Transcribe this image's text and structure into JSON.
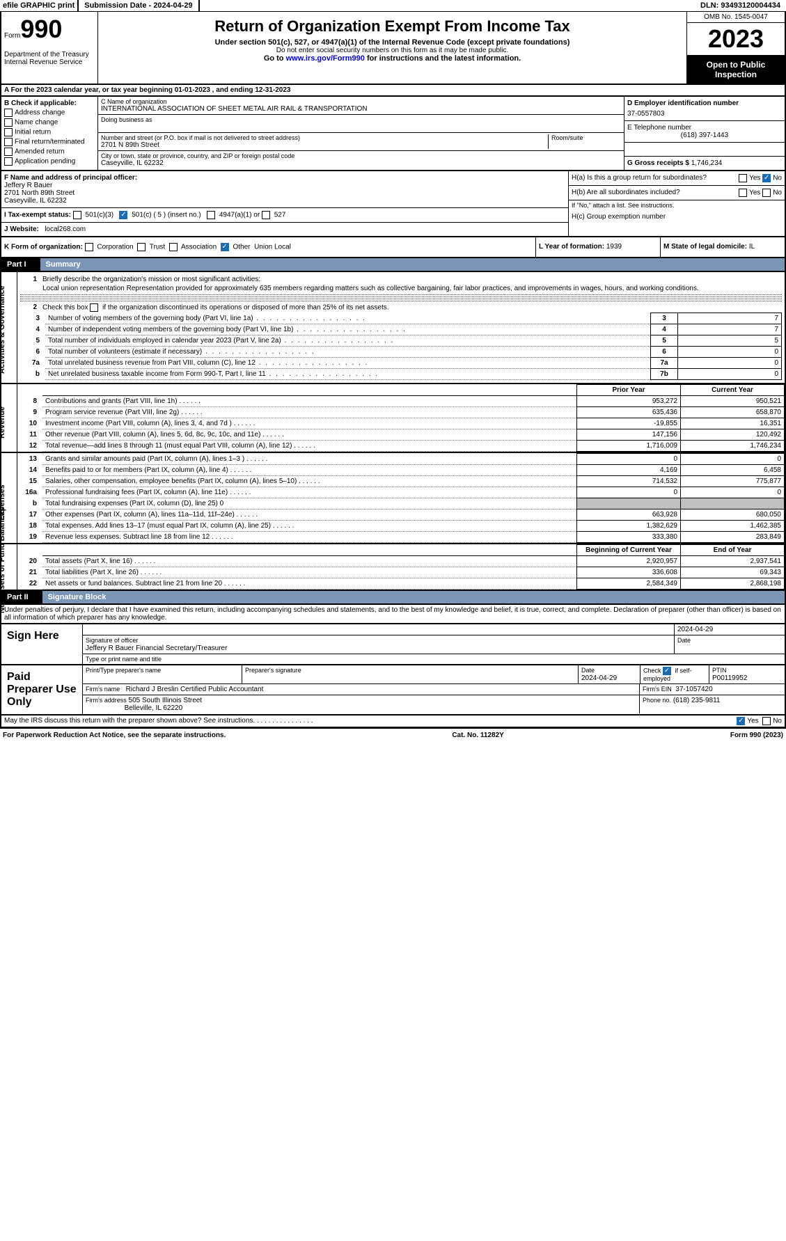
{
  "topBar": {
    "efile": "efile GRAPHIC print",
    "subDate": "Submission Date - 2024-04-29",
    "dln": "DLN: 93493120004434"
  },
  "header": {
    "formWord": "Form",
    "formNum": "990",
    "dept": "Department of the Treasury Internal Revenue Service",
    "title": "Return of Organization Exempt From Income Tax",
    "sub1": "Under section 501(c), 527, or 4947(a)(1) of the Internal Revenue Code (except private foundations)",
    "sub2": "Do not enter social security numbers on this form as it may be made public.",
    "sub3": "Go to www.irs.gov/Form990 for instructions and the latest information.",
    "omb": "OMB No. 1545-0047",
    "year": "2023",
    "openPublic": "Open to Public Inspection"
  },
  "rowA": "A For the 2023 calendar year, or tax year beginning 01-01-2023   , and ending 12-31-2023",
  "sectionB": {
    "title": "B Check if applicable:",
    "opts": [
      "Address change",
      "Name change",
      "Initial return",
      "Final return/terminated",
      "Amended return",
      "Application pending"
    ]
  },
  "sectionC": {
    "nameLabel": "C Name of organization",
    "name": "INTERNATIONAL ASSOCIATION OF SHEET METAL AIR RAIL & TRANSPORTATION",
    "dba": "Doing business as",
    "streetLabel": "Number and street (or P.O. box if mail is not delivered to street address)",
    "street": "2701 N 89th Street",
    "room": "Room/suite",
    "cityLabel": "City or town, state or province, country, and ZIP or foreign postal code",
    "city": "Caseyville, IL  62232"
  },
  "sectionD": {
    "einLabel": "D Employer identification number",
    "ein": "37-0557803",
    "telLabel": "E Telephone number",
    "tel": "(618) 397-1443",
    "grossLabel": "G Gross receipts $",
    "gross": "1,746,234"
  },
  "sectionF": {
    "label": "F Name and address of principal officer:",
    "name": "Jeffery R Bauer",
    "street": "2701 North 89th Street",
    "city": "Caseyville, IL  62232"
  },
  "sectionH": {
    "a": "H(a)  Is this a group return for subordinates?",
    "b": "H(b)  Are all subordinates included?",
    "bNote": "If \"No,\" attach a list. See instructions.",
    "c": "H(c)  Group exemption number",
    "yes": "Yes",
    "no": "No"
  },
  "rowI": {
    "label": "I   Tax-exempt status:",
    "o1": "501(c)(3)",
    "o2": "501(c) ( 5 ) (insert no.)",
    "o3": "4947(a)(1) or",
    "o4": "527"
  },
  "rowJ": {
    "label": "J   Website:",
    "val": "local268.com"
  },
  "rowK": {
    "label": "K Form of organization:",
    "opts": [
      "Corporation",
      "Trust",
      "Association",
      "Other"
    ],
    "other": "Union Local"
  },
  "rowL": {
    "label": "L Year of formation:",
    "val": "1939"
  },
  "rowM": {
    "label": "M State of legal domicile:",
    "val": "IL"
  },
  "partI": {
    "label": "Part I",
    "title": "Summary"
  },
  "summary": {
    "l1Label": "1",
    "l1a": "Briefly describe the organization's mission or most significant activities:",
    "l1b": "Local union representation Representation provided for approximately 635 members regarding matters such as collective bargaining, fair labor practices, and improvements in wages, hours, and working conditions.",
    "l2": "Check this box       if the organization discontinued its operations or disposed of more than 25% of its net assets.",
    "lines37": [
      {
        "n": "3",
        "d": "Number of voting members of the governing body (Part VI, line 1a)",
        "b": "3",
        "v": "7"
      },
      {
        "n": "4",
        "d": "Number of independent voting members of the governing body (Part VI, line 1b)",
        "b": "4",
        "v": "7"
      },
      {
        "n": "5",
        "d": "Total number of individuals employed in calendar year 2023 (Part V, line 2a)",
        "b": "5",
        "v": "5"
      },
      {
        "n": "6",
        "d": "Total number of volunteers (estimate if necessary)",
        "b": "6",
        "v": "0"
      },
      {
        "n": "7a",
        "d": "Total unrelated business revenue from Part VIII, column (C), line 12",
        "b": "7a",
        "v": "0"
      },
      {
        "n": "b",
        "d": "Net unrelated business taxable income from Form 990-T, Part I, line 11",
        "b": "7b",
        "v": "0"
      }
    ],
    "revHeaders": {
      "prior": "Prior Year",
      "curr": "Current Year"
    },
    "revenue": [
      {
        "n": "8",
        "d": "Contributions and grants (Part VIII, line 1h)",
        "p": "953,272",
        "c": "950,521"
      },
      {
        "n": "9",
        "d": "Program service revenue (Part VIII, line 2g)",
        "p": "635,436",
        "c": "658,870"
      },
      {
        "n": "10",
        "d": "Investment income (Part VIII, column (A), lines 3, 4, and 7d )",
        "p": "-19,855",
        "c": "16,351"
      },
      {
        "n": "11",
        "d": "Other revenue (Part VIII, column (A), lines 5, 6d, 8c, 9c, 10c, and 11e)",
        "p": "147,156",
        "c": "120,492"
      },
      {
        "n": "12",
        "d": "Total revenue—add lines 8 through 11 (must equal Part VIII, column (A), line 12)",
        "p": "1,716,009",
        "c": "1,746,234"
      }
    ],
    "expenses": [
      {
        "n": "13",
        "d": "Grants and similar amounts paid (Part IX, column (A), lines 1–3 )",
        "p": "0",
        "c": "0"
      },
      {
        "n": "14",
        "d": "Benefits paid to or for members (Part IX, column (A), line 4)",
        "p": "4,169",
        "c": "6,458"
      },
      {
        "n": "15",
        "d": "Salaries, other compensation, employee benefits (Part IX, column (A), lines 5–10)",
        "p": "714,532",
        "c": "775,877"
      },
      {
        "n": "16a",
        "d": "Professional fundraising fees (Part IX, column (A), line 11e)",
        "p": "0",
        "c": "0"
      },
      {
        "n": "b",
        "d": "Total fundraising expenses (Part IX, column (D), line 25) 0",
        "p": "",
        "c": "",
        "shade": true
      },
      {
        "n": "17",
        "d": "Other expenses (Part IX, column (A), lines 11a–11d, 11f–24e)",
        "p": "663,928",
        "c": "680,050"
      },
      {
        "n": "18",
        "d": "Total expenses. Add lines 13–17 (must equal Part IX, column (A), line 25)",
        "p": "1,382,629",
        "c": "1,462,385"
      },
      {
        "n": "19",
        "d": "Revenue less expenses. Subtract line 18 from line 12",
        "p": "333,380",
        "c": "283,849"
      }
    ],
    "naHeaders": {
      "prior": "Beginning of Current Year",
      "curr": "End of Year"
    },
    "netassets": [
      {
        "n": "20",
        "d": "Total assets (Part X, line 16)",
        "p": "2,920,957",
        "c": "2,937,541"
      },
      {
        "n": "21",
        "d": "Total liabilities (Part X, line 26)",
        "p": "336,608",
        "c": "69,343"
      },
      {
        "n": "22",
        "d": "Net assets or fund balances. Subtract line 21 from line 20",
        "p": "2,584,349",
        "c": "2,868,198"
      }
    ],
    "vertLabels": {
      "ag": "Activities & Governance",
      "rev": "Revenue",
      "exp": "Expenses",
      "na": "Net Assets or Fund Balances"
    }
  },
  "partII": {
    "label": "Part II",
    "title": "Signature Block"
  },
  "penalties": "Under penalties of perjury, I declare that I have examined this return, including accompanying schedules and statements, and to the best of my knowledge and belief, it is true, correct, and complete. Declaration of preparer (other than officer) is based on all information of which preparer has any knowledge.",
  "sign": {
    "here": "Sign Here",
    "sigOfficer": "Signature of officer",
    "officer": "Jeffery R Bauer  Financial Secretary/Treasurer",
    "typeLabel": "Type or print name and title",
    "date": "2024-04-29",
    "dateLabel": "Date"
  },
  "preparer": {
    "label": "Paid Preparer Use Only",
    "printLabel": "Print/Type preparer's name",
    "sigLabel": "Preparer's signature",
    "dateLabel": "Date",
    "date": "2024-04-29",
    "checkLabel": "Check",
    "selfEmp": "if self-employed",
    "ptinLabel": "PTIN",
    "ptin": "P00119952",
    "firmNameLabel": "Firm's name",
    "firmName": "Richard J Breslin Certified Public Accountant",
    "firmEinLabel": "Firm's EIN",
    "firmEin": "37-1057420",
    "firmAddrLabel": "Firm's address",
    "firmAddr": "505 South Illinois Street",
    "firmCity": "Belleville, IL  62220",
    "phoneLabel": "Phone no.",
    "phone": "(618) 235-9811"
  },
  "discuss": "May the IRS discuss this return with the preparer shown above? See instructions.",
  "footer": {
    "pra": "For Paperwork Reduction Act Notice, see the separate instructions.",
    "cat": "Cat. No. 11282Y",
    "form": "Form 990 (2023)"
  },
  "colors": {
    "checkBlue": "#1a6bb3",
    "partHeaderBg": "#7a95b5"
  }
}
